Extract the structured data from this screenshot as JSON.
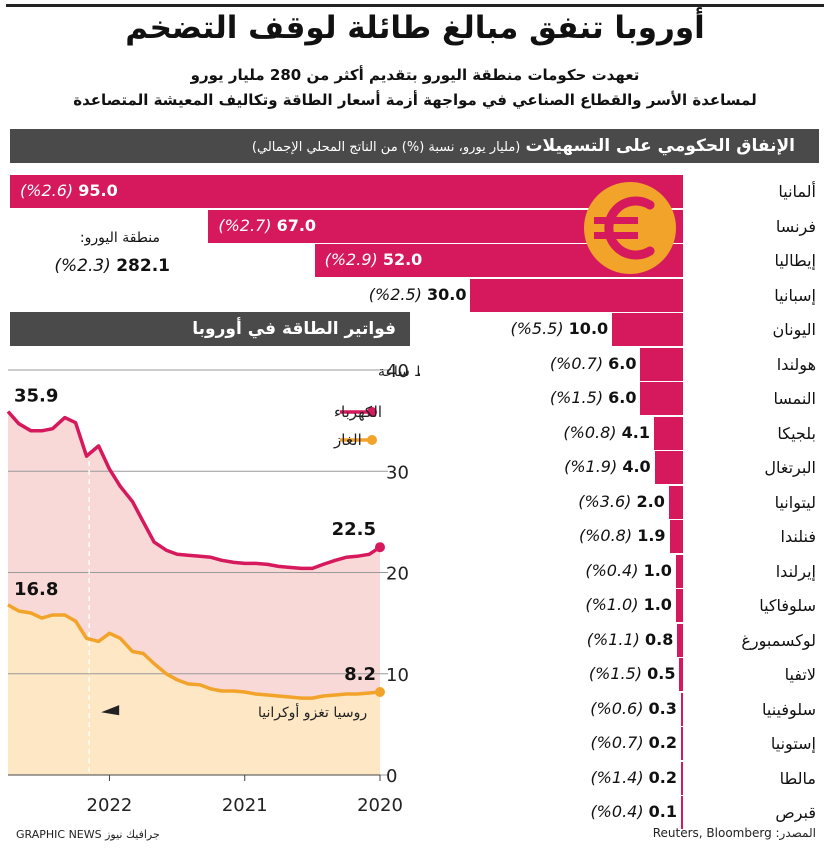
{
  "header": {
    "title": "أوروبا تنفق مبالغ طائلة لوقف التضخم",
    "subtitle_line1": "تعهدت حكومات منطقة اليورو بتقديم أكثر من 280 مليار يورو",
    "subtitle_line2": "لمساعدة الأسر والقطاع الصناعي في مواجهة أزمة أسعار الطاقة وتكاليف المعيشة المتصاعدة"
  },
  "spending_panel": {
    "title": "الإنفاق الحكومي على التسهيلات",
    "unit_note": "(مليار يورو، نسبة (%) من الناتج المحلي الإجمالي)",
    "eurozone_label": "منطقة اليورو:",
    "eurozone_value": "282.1",
    "eurozone_pct": "(%2.3)"
  },
  "energy_panel": {
    "title": "فواتير الطاقة في أوروبا",
    "unit_label": "سنت يورو / كيلوواط ساعة",
    "annotation": "روسيا تغزو أوكرانيا",
    "legend": [
      {
        "name": "الكهرباء",
        "color": "#d6195c"
      },
      {
        "name": "الغاز",
        "color": "#f2a32a"
      }
    ],
    "start_labels": {
      "electricity": "35.9",
      "gas": "16.8"
    },
    "end_labels": {
      "electricity": "22.5",
      "gas": "8.2"
    }
  },
  "footer": {
    "credit": "GRAPHIC NEWS جرافيك نيوز",
    "source": "المصدر: Reuters, Bloomberg"
  },
  "colors": {
    "bar": "#d6195c",
    "electricity_fill": "#f8d9d8",
    "gas_fill": "#fde7c5",
    "header_bg": "#4a4a4a",
    "euro_sign": "#f2a32a"
  },
  "chart_data": [
    {
      "type": "bar",
      "orientation": "horizontal",
      "title": "الإنفاق الحكومي على التسهيلات",
      "categories": [
        "ألمانيا",
        "فرنسا",
        "إيطاليا",
        "إسبانيا",
        "اليونان",
        "هولندا",
        "النمسا",
        "بلجيكا",
        "البرتغال",
        "ليتوانيا",
        "فنلندا",
        "إيرلندا",
        "سلوفاكيا",
        "لوكسمبورغ",
        "لاتفيا",
        "سلوفينيا",
        "إستونيا",
        "مالطا",
        "قبرص"
      ],
      "values": [
        95.0,
        67.0,
        52.0,
        30.0,
        10.0,
        6.0,
        6.0,
        4.1,
        4.0,
        2.0,
        1.9,
        1.0,
        1.0,
        0.8,
        0.5,
        0.3,
        0.2,
        0.2,
        0.1
      ],
      "value_labels": [
        "95.0",
        "67.0",
        "52.0",
        "30.0",
        "10.0",
        "6.0",
        "6.0",
        "4.1",
        "4.0",
        "2.0",
        "1.9",
        "1.0",
        "1.0",
        "0.8",
        "0.5",
        "0.3",
        "0.2",
        "0.2",
        "0.1"
      ],
      "pct_labels": [
        "(%2.6)",
        "(%2.7)",
        "(%2.9)",
        "(%2.5)",
        "(%5.5)",
        "(%0.7)",
        "(%1.5)",
        "(%0.8)",
        "(%1.9)",
        "(%3.6)",
        "(%0.8)",
        "(%0.4)",
        "(%1.0)",
        "(%1.1)",
        "(%1.5)",
        "(%0.6)",
        "(%0.7)",
        "(%1.4)",
        "(%0.4)"
      ],
      "pct_gdp": [
        2.6,
        2.7,
        2.9,
        2.5,
        5.5,
        0.7,
        1.5,
        0.8,
        1.9,
        3.6,
        0.8,
        0.4,
        1.0,
        1.1,
        1.5,
        0.6,
        0.7,
        1.4,
        0.4
      ],
      "xlim": [
        0,
        95
      ]
    },
    {
      "type": "area",
      "title": "فواتير الطاقة في أوروبا",
      "ylabel": "سنت يورو / كيلوواط ساعة",
      "ylim": [
        0,
        40
      ],
      "yticks": [
        "0",
        "10",
        "20",
        "30",
        "40"
      ],
      "x_axis_direction": "right-to-left",
      "xticks": [
        {
          "label": "2020",
          "x": 2020.0
        },
        {
          "label": "2021",
          "x": 2021.0
        },
        {
          "label": "2022",
          "x": 2022.0
        }
      ],
      "xlim": [
        2020.0,
        2022.75
      ],
      "annotation": {
        "label": "روسيا تغزو أوكرانيا",
        "x": 2022.15
      },
      "grid": true,
      "series": [
        {
          "name": "الكهرباء",
          "x": [
            2020.0,
            2020.08,
            2020.17,
            2020.25,
            2020.33,
            2020.42,
            2020.5,
            2020.58,
            2020.67,
            2020.75,
            2020.83,
            2020.92,
            2021.0,
            2021.08,
            2021.17,
            2021.25,
            2021.33,
            2021.42,
            2021.5,
            2021.58,
            2021.67,
            2021.75,
            2021.83,
            2021.92,
            2022.0,
            2022.08,
            2022.17,
            2022.25,
            2022.33,
            2022.42,
            2022.5,
            2022.58,
            2022.67,
            2022.75
          ],
          "values": [
            22.5,
            21.8,
            21.6,
            21.5,
            21.2,
            20.8,
            20.4,
            20.4,
            20.5,
            20.6,
            20.8,
            20.9,
            20.9,
            21.0,
            21.2,
            21.5,
            21.6,
            21.7,
            21.8,
            22.2,
            23.0,
            25.0,
            27.0,
            28.5,
            30.2,
            32.5,
            31.5,
            34.8,
            35.3,
            34.2,
            34.0,
            34.0,
            34.7,
            35.9
          ]
        },
        {
          "name": "الغاز",
          "x": [
            2020.0,
            2020.08,
            2020.17,
            2020.25,
            2020.33,
            2020.42,
            2020.5,
            2020.58,
            2020.67,
            2020.75,
            2020.83,
            2020.92,
            2021.0,
            2021.08,
            2021.17,
            2021.25,
            2021.33,
            2021.42,
            2021.5,
            2021.58,
            2021.67,
            2021.75,
            2021.83,
            2021.92,
            2022.0,
            2022.08,
            2022.17,
            2022.25,
            2022.33,
            2022.42,
            2022.5,
            2022.58,
            2022.67,
            2022.75
          ],
          "values": [
            8.2,
            8.1,
            8.0,
            8.0,
            7.9,
            7.8,
            7.6,
            7.6,
            7.7,
            7.8,
            7.9,
            8.0,
            8.2,
            8.3,
            8.3,
            8.5,
            8.9,
            9.0,
            9.4,
            10.0,
            11.0,
            12.0,
            12.2,
            13.5,
            14.0,
            13.2,
            13.5,
            15.2,
            15.8,
            15.8,
            15.5,
            16.0,
            16.2,
            16.8
          ]
        }
      ]
    }
  ]
}
